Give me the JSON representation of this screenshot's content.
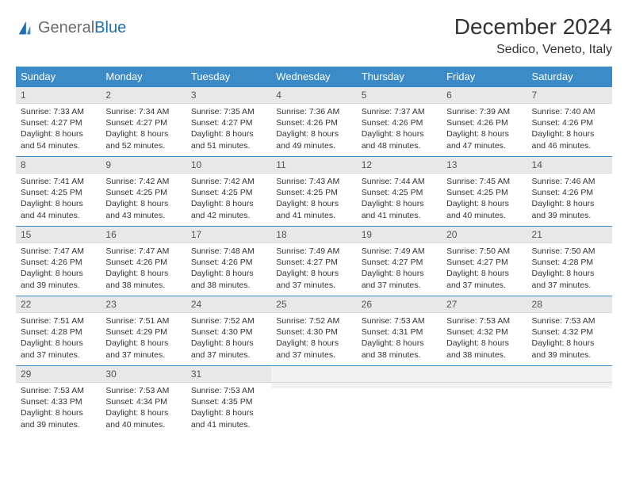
{
  "logo": {
    "part1": "General",
    "part2": "Blue"
  },
  "title": "December 2024",
  "location": "Sedico, Veneto, Italy",
  "weekdays": [
    "Sunday",
    "Monday",
    "Tuesday",
    "Wednesday",
    "Thursday",
    "Friday",
    "Saturday"
  ],
  "colors": {
    "header_bg": "#3b8bc9",
    "header_text": "#ffffff",
    "daynum_bg": "#e8e8e8",
    "rule": "#3b8bc9",
    "logo_gray": "#6b6b6b",
    "logo_blue": "#1f6fb2"
  },
  "fonts": {
    "title_size_pt": 21,
    "location_size_pt": 12,
    "weekday_size_pt": 10,
    "body_size_pt": 8
  },
  "days": [
    {
      "n": 1,
      "sunrise": "7:33 AM",
      "sunset": "4:27 PM",
      "daylight": "8 hours and 54 minutes."
    },
    {
      "n": 2,
      "sunrise": "7:34 AM",
      "sunset": "4:27 PM",
      "daylight": "8 hours and 52 minutes."
    },
    {
      "n": 3,
      "sunrise": "7:35 AM",
      "sunset": "4:27 PM",
      "daylight": "8 hours and 51 minutes."
    },
    {
      "n": 4,
      "sunrise": "7:36 AM",
      "sunset": "4:26 PM",
      "daylight": "8 hours and 49 minutes."
    },
    {
      "n": 5,
      "sunrise": "7:37 AM",
      "sunset": "4:26 PM",
      "daylight": "8 hours and 48 minutes."
    },
    {
      "n": 6,
      "sunrise": "7:39 AM",
      "sunset": "4:26 PM",
      "daylight": "8 hours and 47 minutes."
    },
    {
      "n": 7,
      "sunrise": "7:40 AM",
      "sunset": "4:26 PM",
      "daylight": "8 hours and 46 minutes."
    },
    {
      "n": 8,
      "sunrise": "7:41 AM",
      "sunset": "4:25 PM",
      "daylight": "8 hours and 44 minutes."
    },
    {
      "n": 9,
      "sunrise": "7:42 AM",
      "sunset": "4:25 PM",
      "daylight": "8 hours and 43 minutes."
    },
    {
      "n": 10,
      "sunrise": "7:42 AM",
      "sunset": "4:25 PM",
      "daylight": "8 hours and 42 minutes."
    },
    {
      "n": 11,
      "sunrise": "7:43 AM",
      "sunset": "4:25 PM",
      "daylight": "8 hours and 41 minutes."
    },
    {
      "n": 12,
      "sunrise": "7:44 AM",
      "sunset": "4:25 PM",
      "daylight": "8 hours and 41 minutes."
    },
    {
      "n": 13,
      "sunrise": "7:45 AM",
      "sunset": "4:25 PM",
      "daylight": "8 hours and 40 minutes."
    },
    {
      "n": 14,
      "sunrise": "7:46 AM",
      "sunset": "4:26 PM",
      "daylight": "8 hours and 39 minutes."
    },
    {
      "n": 15,
      "sunrise": "7:47 AM",
      "sunset": "4:26 PM",
      "daylight": "8 hours and 39 minutes."
    },
    {
      "n": 16,
      "sunrise": "7:47 AM",
      "sunset": "4:26 PM",
      "daylight": "8 hours and 38 minutes."
    },
    {
      "n": 17,
      "sunrise": "7:48 AM",
      "sunset": "4:26 PM",
      "daylight": "8 hours and 38 minutes."
    },
    {
      "n": 18,
      "sunrise": "7:49 AM",
      "sunset": "4:27 PM",
      "daylight": "8 hours and 37 minutes."
    },
    {
      "n": 19,
      "sunrise": "7:49 AM",
      "sunset": "4:27 PM",
      "daylight": "8 hours and 37 minutes."
    },
    {
      "n": 20,
      "sunrise": "7:50 AM",
      "sunset": "4:27 PM",
      "daylight": "8 hours and 37 minutes."
    },
    {
      "n": 21,
      "sunrise": "7:50 AM",
      "sunset": "4:28 PM",
      "daylight": "8 hours and 37 minutes."
    },
    {
      "n": 22,
      "sunrise": "7:51 AM",
      "sunset": "4:28 PM",
      "daylight": "8 hours and 37 minutes."
    },
    {
      "n": 23,
      "sunrise": "7:51 AM",
      "sunset": "4:29 PM",
      "daylight": "8 hours and 37 minutes."
    },
    {
      "n": 24,
      "sunrise": "7:52 AM",
      "sunset": "4:30 PM",
      "daylight": "8 hours and 37 minutes."
    },
    {
      "n": 25,
      "sunrise": "7:52 AM",
      "sunset": "4:30 PM",
      "daylight": "8 hours and 37 minutes."
    },
    {
      "n": 26,
      "sunrise": "7:53 AM",
      "sunset": "4:31 PM",
      "daylight": "8 hours and 38 minutes."
    },
    {
      "n": 27,
      "sunrise": "7:53 AM",
      "sunset": "4:32 PM",
      "daylight": "8 hours and 38 minutes."
    },
    {
      "n": 28,
      "sunrise": "7:53 AM",
      "sunset": "4:32 PM",
      "daylight": "8 hours and 39 minutes."
    },
    {
      "n": 29,
      "sunrise": "7:53 AM",
      "sunset": "4:33 PM",
      "daylight": "8 hours and 39 minutes."
    },
    {
      "n": 30,
      "sunrise": "7:53 AM",
      "sunset": "4:34 PM",
      "daylight": "8 hours and 40 minutes."
    },
    {
      "n": 31,
      "sunrise": "7:53 AM",
      "sunset": "4:35 PM",
      "daylight": "8 hours and 41 minutes."
    }
  ],
  "labels": {
    "sunrise_prefix": "Sunrise: ",
    "sunset_prefix": "Sunset: ",
    "daylight_prefix": "Daylight: "
  }
}
